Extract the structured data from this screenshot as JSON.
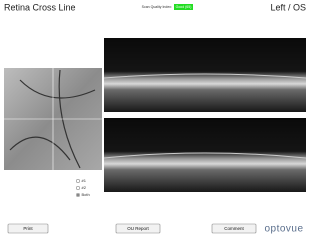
{
  "header": {
    "title": "Retina Cross Line",
    "quality_label": "Scan Quality Index:",
    "quality_value": "Good (65)",
    "eye": "Left / OS"
  },
  "view_options": [
    "#1",
    "#2",
    "Both"
  ],
  "buttons": [
    "Print",
    "OU Report",
    "Comment"
  ],
  "logo": "optovue"
}
